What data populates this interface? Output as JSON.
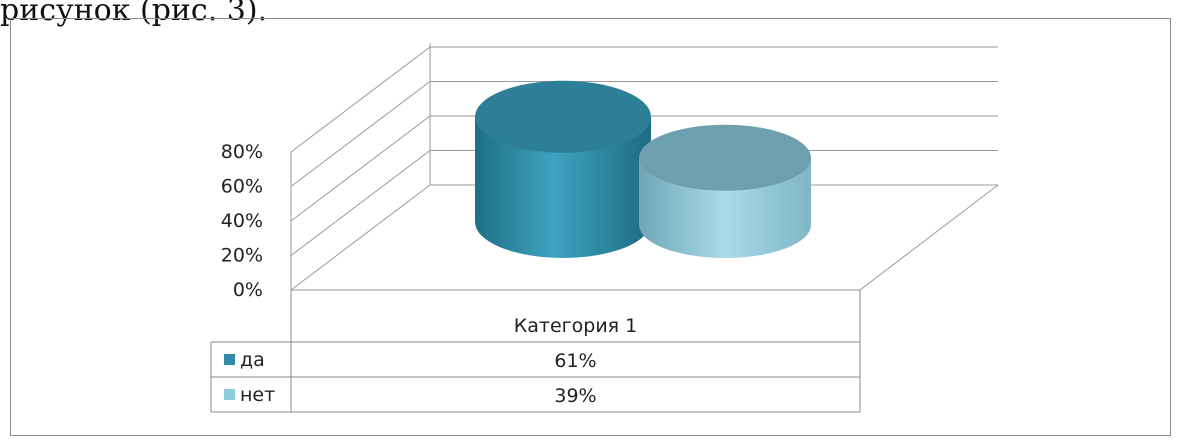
{
  "clipped_heading": "рисунок (рис. 3).",
  "chart_data": {
    "type": "bar",
    "style": "3d-cylinder",
    "categories": [
      "Категория 1"
    ],
    "series": [
      {
        "name": "да",
        "values": [
          61
        ],
        "label": "61%",
        "color": "#3A9BB8"
      },
      {
        "name": "нет",
        "values": [
          39
        ],
        "label": "39%",
        "color": "#8ECBDD"
      }
    ],
    "y_ticks": [
      "0%",
      "20%",
      "40%",
      "60%",
      "80%"
    ],
    "ylim": [
      0,
      80
    ],
    "grid": true,
    "legend": "data-table",
    "data_table": true,
    "colors": {
      "wall": "#999999",
      "frame": "#7f7f7f"
    }
  }
}
